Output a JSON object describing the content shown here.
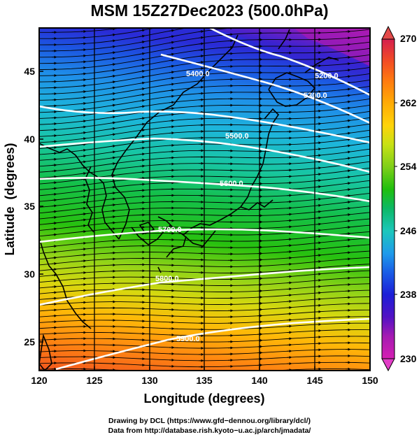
{
  "title": "MSM 15Z27Dec2023 (500.0hPa)",
  "x_axis": {
    "label": "Longitude (degrees)",
    "range": [
      120,
      150
    ],
    "ticks": [
      "120",
      "125",
      "130",
      "135",
      "140",
      "145",
      "150"
    ]
  },
  "y_axis": {
    "label": "Latitude  (degrees)",
    "range": [
      22.4,
      47.6
    ],
    "ticks": [
      "25",
      "30",
      "35",
      "40",
      "45"
    ]
  },
  "colorbar": {
    "range": [
      230,
      270
    ],
    "labels": [
      "270",
      "262",
      "254",
      "246",
      "238",
      "230"
    ],
    "colors": [
      "#d51f4e",
      "#f24d24",
      "#ff7a10",
      "#ffab05",
      "#ffd309",
      "#c7e114",
      "#7fcf19",
      "#1fbf0e",
      "#0cb866",
      "#1cc7bb",
      "#1e9bea",
      "#1a5de6",
      "#1c1ed7",
      "#5212c4",
      "#a51ab2",
      "#d51fb3"
    ]
  },
  "contours": [
    {
      "value": 5200,
      "label": "5200.0"
    },
    {
      "value": 5300,
      "label": "5300.0"
    },
    {
      "value": 5400,
      "label": "5400.0"
    },
    {
      "value": 5500,
      "label": "5500.0"
    },
    {
      "value": 5600,
      "label": "5600.0"
    },
    {
      "value": 5700,
      "label": "5700.0"
    },
    {
      "value": 5800,
      "label": "5800.0"
    },
    {
      "value": 5900,
      "label": "5900.0"
    }
  ],
  "credits": {
    "drawing": "Drawing by DCL (https://www.gfd−dennou.org/library/dcl/)",
    "data": "Data from http://database.rish.kyoto−u.ac.jp/arch/jmadata/"
  }
}
